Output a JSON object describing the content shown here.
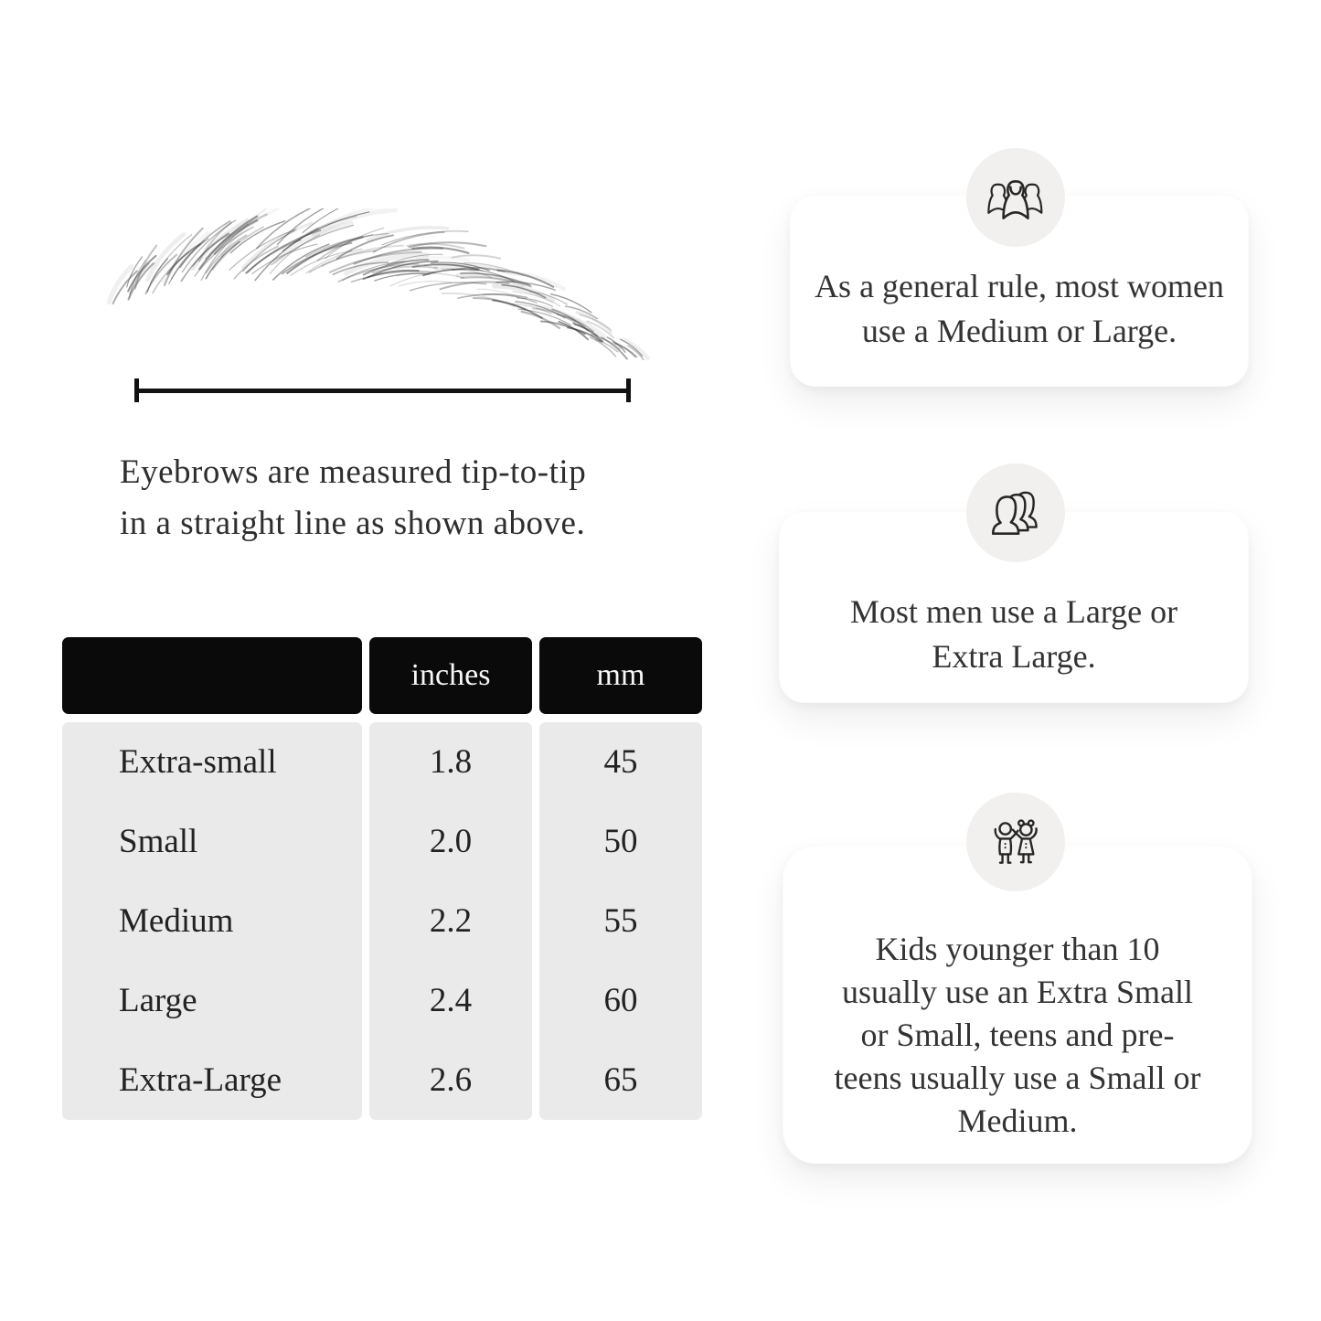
{
  "page": {
    "background": "#ffffff",
    "text_color": "#2b2b2b"
  },
  "measurement_figure": {
    "eyebrow_alt": "hand-drawn eyebrow sketch",
    "caption_line1": "Eyebrows are measured tip-to-tip",
    "caption_line2": "in a straight line as shown above."
  },
  "size_table": {
    "columns": [
      "",
      "inches",
      "mm"
    ],
    "rows": [
      {
        "label": "Extra-small",
        "inches": "1.8",
        "mm": "45"
      },
      {
        "label": "Small",
        "inches": "2.0",
        "mm": "50"
      },
      {
        "label": "Medium",
        "inches": "2.2",
        "mm": "55"
      },
      {
        "label": "Large",
        "inches": "2.4",
        "mm": "60"
      },
      {
        "label": "Extra-Large",
        "inches": "2.6",
        "mm": "65"
      }
    ],
    "header_bg": "#0a0a0a",
    "header_text_color": "#f7f7f7",
    "body_bg": "#eaeaea"
  },
  "info_cards": [
    {
      "icon": "women-group-icon",
      "text": "As a general rule, most women use a Medium or Large."
    },
    {
      "icon": "men-group-icon",
      "text": "Most men use a Large or Extra Large."
    },
    {
      "icon": "kids-icon",
      "text": "Kids younger than 10 usually use an Extra Small or Small, teens and pre-teens usually use a Small or Medium."
    }
  ]
}
